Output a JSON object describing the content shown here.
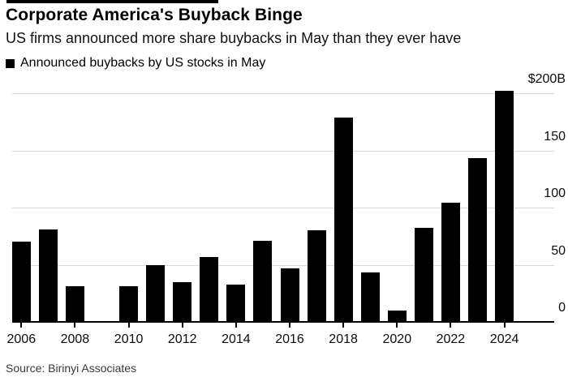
{
  "page": {
    "background": "#ffffff",
    "accent": "#000000"
  },
  "header": {
    "title": "Corporate America's Buyback Binge",
    "subtitle": "US firms announced more share buybacks in May than they ever have"
  },
  "legend": {
    "marker_color": "#000000",
    "label": "Announced buybacks by US stocks in May"
  },
  "chart_data": {
    "type": "bar",
    "title": "Announced buybacks by US stocks in May",
    "categories": [
      "2006",
      "2007",
      "2008",
      "2009",
      "2010",
      "2011",
      "2012",
      "2013",
      "2014",
      "2015",
      "2016",
      "2017",
      "2018",
      "2019",
      "2020",
      "2021",
      "2022",
      "2023",
      "2024"
    ],
    "values": [
      70,
      81,
      31,
      1,
      31,
      50,
      35,
      57,
      33,
      71,
      47,
      80,
      179,
      43,
      10,
      82,
      104,
      143,
      202
    ],
    "unit": "$B",
    "xlabel": "",
    "ylabel": "",
    "ylim": [
      0,
      200
    ],
    "yticks": [
      {
        "value": 200,
        "label": "$200B"
      },
      {
        "value": 150,
        "label": "150"
      },
      {
        "value": 100,
        "label": "100"
      },
      {
        "value": 50,
        "label": "50"
      },
      {
        "value": 0,
        "label": "0"
      }
    ],
    "xtick_labels": [
      "2006",
      "2008",
      "2010",
      "2012",
      "2014",
      "2016",
      "2018",
      "2020",
      "2022",
      "2024"
    ],
    "grid": true,
    "legend_position": "top-left",
    "bar_color": "#000000",
    "grid_color": "#d9d9d9",
    "axis_color": "#000000"
  },
  "footer": {
    "source": "Source: Birinyi Associates"
  }
}
